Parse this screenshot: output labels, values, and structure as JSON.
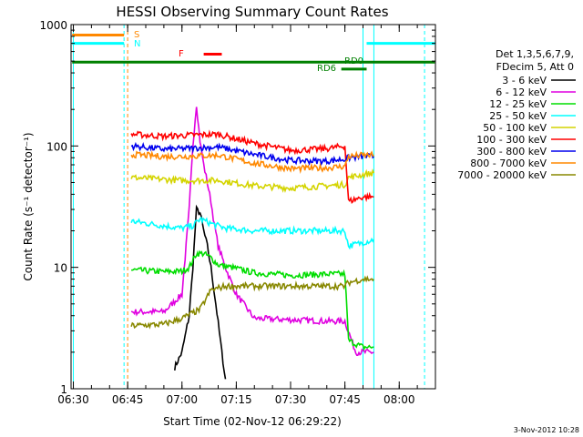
{
  "chart_data": {
    "type": "line",
    "title": "HESSI Observing Summary Count Rates",
    "xlabel": "Start Time (02-Nov-12 06:29:22)",
    "ylabel": "Count Rate (s⁻¹ detector⁻¹)",
    "yscale": "log",
    "ylim": [
      1,
      1000
    ],
    "xlim": [
      "06:29:22",
      "08:10:00"
    ],
    "x_ticks": [
      "06:30",
      "06:45",
      "07:00",
      "07:15",
      "07:30",
      "07:45",
      "08:00"
    ],
    "y_ticks": [
      "1",
      "10",
      "100",
      "1000"
    ],
    "legend": {
      "placement": "right",
      "header": [
        "Det 1,3,5,6,7,9,",
        "FDecim 5, Att 0"
      ],
      "entries": [
        {
          "label": "3 - 6 keV",
          "color": "#000000"
        },
        {
          "label": "6 - 12 keV",
          "color": "#e000e0"
        },
        {
          "label": "12 - 25 keV",
          "color": "#00dd00"
        },
        {
          "label": "25 - 50 keV",
          "color": "#00ffff"
        },
        {
          "label": "50 - 100 keV",
          "color": "#d4d400"
        },
        {
          "label": "100 - 300 keV",
          "color": "#ff0000"
        },
        {
          "label": "300 - 800 keV",
          "color": "#0000ee"
        },
        {
          "label": "800 - 7000 keV",
          "color": "#ff8800"
        },
        {
          "label": "7000 - 20000 keV",
          "color": "#888800"
        }
      ]
    },
    "series": [
      {
        "name": "3 - 6 keV",
        "color": "#000000",
        "x": [
          "06:58",
          "07:00",
          "07:02",
          "07:03",
          "07:04",
          "07:05",
          "07:06",
          "07:07",
          "07:08",
          "07:09",
          "07:10",
          "07:11",
          "07:12"
        ],
        "y": [
          1.5,
          2,
          4,
          10,
          30,
          28,
          20,
          15,
          10,
          6,
          3.5,
          2,
          1.2
        ]
      },
      {
        "name": "6 - 12 keV",
        "color": "#e000e0",
        "x": [
          "06:46",
          "06:55",
          "07:00",
          "07:02",
          "07:03",
          "07:04",
          "07:05",
          "07:06",
          "07:07",
          "07:08",
          "07:09",
          "07:10",
          "07:12",
          "07:15",
          "07:20",
          "07:30",
          "07:40",
          "07:45",
          "07:48",
          "07:50",
          "07:52",
          "07:53"
        ],
        "y": [
          4.3,
          4.3,
          6,
          30,
          100,
          220,
          110,
          70,
          50,
          35,
          22,
          15,
          10,
          6,
          3.8,
          3.7,
          3.6,
          3.6,
          2,
          2,
          2,
          2
        ]
      },
      {
        "name": "12 - 25 keV",
        "color": "#00dd00",
        "x": [
          "06:46",
          "06:55",
          "07:00",
          "07:02",
          "07:04",
          "07:06",
          "07:08",
          "07:10",
          "07:15",
          "07:20",
          "07:30",
          "07:40",
          "07:45",
          "07:46",
          "07:50",
          "07:52",
          "07:53"
        ],
        "y": [
          9.5,
          9.2,
          9.3,
          10,
          13,
          13,
          12,
          10.5,
          9.8,
          9,
          8.6,
          8.8,
          8.8,
          2.5,
          2.2,
          2.2,
          2.2
        ]
      },
      {
        "name": "25 - 50 keV",
        "color": "#00ffff",
        "x": [
          "06:46",
          "06:55",
          "07:00",
          "07:03",
          "07:05",
          "07:08",
          "07:12",
          "07:20",
          "07:30",
          "07:40",
          "07:45",
          "07:46",
          "07:50",
          "07:53"
        ],
        "y": [
          24,
          22,
          21,
          22,
          25,
          23,
          21,
          20,
          20,
          20,
          20,
          15,
          16,
          17
        ]
      },
      {
        "name": "50 - 100 keV",
        "color": "#d4d400",
        "x": [
          "06:46",
          "06:55",
          "07:00",
          "07:10",
          "07:20",
          "07:30",
          "07:40",
          "07:45",
          "07:46",
          "07:50",
          "07:53"
        ],
        "y": [
          55,
          53,
          52,
          52,
          47,
          45,
          47,
          48,
          55,
          58,
          60
        ]
      },
      {
        "name": "100 - 300 keV",
        "color": "#ff0000",
        "x": [
          "06:46",
          "06:55",
          "07:00",
          "07:10",
          "07:20",
          "07:30",
          "07:40",
          "07:45",
          "07:46",
          "07:50",
          "07:53"
        ],
        "y": [
          125,
          120,
          122,
          125,
          105,
          92,
          95,
          100,
          35,
          38,
          38
        ]
      },
      {
        "name": "300 - 800 keV",
        "color": "#0000ee",
        "x": [
          "06:46",
          "06:55",
          "07:00",
          "07:10",
          "07:20",
          "07:30",
          "07:40",
          "07:45",
          "07:46",
          "07:50",
          "07:53"
        ],
        "y": [
          100,
          94,
          95,
          98,
          85,
          76,
          75,
          78,
          80,
          82,
          82
        ]
      },
      {
        "name": "800 - 7000 keV",
        "color": "#ff8800",
        "x": [
          "06:46",
          "06:55",
          "07:00",
          "07:10",
          "07:20",
          "07:30",
          "07:40",
          "07:45",
          "07:46",
          "07:50",
          "07:53"
        ],
        "y": [
          85,
          82,
          82,
          84,
          72,
          65,
          66,
          68,
          82,
          84,
          84
        ]
      },
      {
        "name": "7000 - 20000 keV",
        "color": "#888800",
        "x": [
          "06:46",
          "06:55",
          "07:00",
          "07:05",
          "07:08",
          "07:12",
          "07:20",
          "07:30",
          "07:40",
          "07:45",
          "07:46",
          "07:50",
          "07:53"
        ],
        "y": [
          3.3,
          3.4,
          3.8,
          4.5,
          6.5,
          7,
          7,
          7,
          7,
          7,
          7.5,
          8,
          8
        ]
      }
    ],
    "annotations": [
      {
        "text": "S",
        "color": "#ff8800"
      },
      {
        "text": "N",
        "color": "#00ffff"
      },
      {
        "text": "F",
        "color": "#ff0000"
      },
      {
        "text": "RD0",
        "color": "#008000"
      },
      {
        "text": "RD6",
        "color": "#008000"
      }
    ],
    "footer_date": "3-Nov-2012 10:28"
  }
}
